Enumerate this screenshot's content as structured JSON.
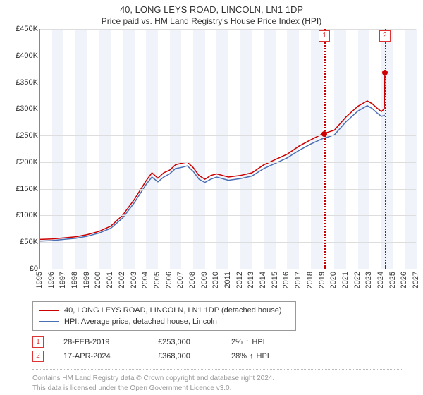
{
  "title": "40, LONG LEYS ROAD, LINCOLN, LN1 1DP",
  "subtitle": "Price paid vs. HM Land Registry's House Price Index (HPI)",
  "chart": {
    "type": "line",
    "background_color": "#ffffff",
    "grid_color": "#dddddd",
    "axis_color": "#888888",
    "band_color": "#f0f3f9",
    "ylim": [
      0,
      450000
    ],
    "ytick_step": 50000,
    "ytick_labels": [
      "£0",
      "£50K",
      "£100K",
      "£150K",
      "£200K",
      "£250K",
      "£300K",
      "£350K",
      "£400K",
      "£450K"
    ],
    "xlim": [
      1995,
      2027
    ],
    "xtick_step": 1,
    "xtick_labels": [
      "1995",
      "1996",
      "1997",
      "1998",
      "1999",
      "2000",
      "2001",
      "2002",
      "2003",
      "2004",
      "2005",
      "2006",
      "2007",
      "2008",
      "2009",
      "2010",
      "2011",
      "2012",
      "2013",
      "2014",
      "2015",
      "2016",
      "2017",
      "2018",
      "2019",
      "2020",
      "2021",
      "2022",
      "2023",
      "2024",
      "2025",
      "2026",
      "2027"
    ],
    "bands_years": [
      [
        1996,
        1997
      ],
      [
        1998,
        1999
      ],
      [
        2000,
        2001
      ],
      [
        2002,
        2003
      ],
      [
        2004,
        2005
      ],
      [
        2006,
        2007
      ],
      [
        2008,
        2009
      ],
      [
        2010,
        2011
      ],
      [
        2012,
        2013
      ],
      [
        2014,
        2015
      ],
      [
        2016,
        2017
      ],
      [
        2018,
        2019
      ],
      [
        2020,
        2021
      ],
      [
        2022,
        2023
      ],
      [
        2024,
        2025
      ],
      [
        2026,
        2027
      ]
    ],
    "series": [
      {
        "name": "property",
        "label": "40, LONG LEYS ROAD, LINCOLN, LN1 1DP (detached house)",
        "color": "#cc0000",
        "line_width": 1.5,
        "points": [
          [
            1995.0,
            55000
          ],
          [
            1996.0,
            56000
          ],
          [
            1997.0,
            58000
          ],
          [
            1998.0,
            60000
          ],
          [
            1999.0,
            64000
          ],
          [
            2000.0,
            70000
          ],
          [
            2001.0,
            80000
          ],
          [
            2002.0,
            100000
          ],
          [
            2003.0,
            130000
          ],
          [
            2004.0,
            165000
          ],
          [
            2004.5,
            180000
          ],
          [
            2005.0,
            170000
          ],
          [
            2005.5,
            180000
          ],
          [
            2006.0,
            185000
          ],
          [
            2006.5,
            195000
          ],
          [
            2007.0,
            198000
          ],
          [
            2007.5,
            200000
          ],
          [
            2008.0,
            190000
          ],
          [
            2008.5,
            175000
          ],
          [
            2009.0,
            168000
          ],
          [
            2009.5,
            175000
          ],
          [
            2010.0,
            178000
          ],
          [
            2011.0,
            172000
          ],
          [
            2012.0,
            175000
          ],
          [
            2013.0,
            180000
          ],
          [
            2014.0,
            195000
          ],
          [
            2015.0,
            205000
          ],
          [
            2016.0,
            215000
          ],
          [
            2017.0,
            230000
          ],
          [
            2018.0,
            242000
          ],
          [
            2019.0,
            253000
          ],
          [
            2020.0,
            260000
          ],
          [
            2021.0,
            285000
          ],
          [
            2022.0,
            305000
          ],
          [
            2022.8,
            315000
          ],
          [
            2023.2,
            310000
          ],
          [
            2023.6,
            302000
          ],
          [
            2024.0,
            295000
          ],
          [
            2024.25,
            300000
          ],
          [
            2024.3,
            368000
          ]
        ]
      },
      {
        "name": "hpi",
        "label": "HPI: Average price, detached house, Lincoln",
        "color": "#4a6fb5",
        "line_width": 1.5,
        "points": [
          [
            1995.0,
            52000
          ],
          [
            1996.0,
            53000
          ],
          [
            1997.0,
            55000
          ],
          [
            1998.0,
            57000
          ],
          [
            1999.0,
            61000
          ],
          [
            2000.0,
            67000
          ],
          [
            2001.0,
            76000
          ],
          [
            2002.0,
            95000
          ],
          [
            2003.0,
            124000
          ],
          [
            2004.0,
            158000
          ],
          [
            2004.5,
            172000
          ],
          [
            2005.0,
            163000
          ],
          [
            2005.5,
            172000
          ],
          [
            2006.0,
            178000
          ],
          [
            2006.5,
            188000
          ],
          [
            2007.0,
            190000
          ],
          [
            2007.5,
            193000
          ],
          [
            2008.0,
            183000
          ],
          [
            2008.5,
            168000
          ],
          [
            2009.0,
            162000
          ],
          [
            2009.5,
            168000
          ],
          [
            2010.0,
            172000
          ],
          [
            2011.0,
            166000
          ],
          [
            2012.0,
            169000
          ],
          [
            2013.0,
            174000
          ],
          [
            2014.0,
            188000
          ],
          [
            2015.0,
            198000
          ],
          [
            2016.0,
            208000
          ],
          [
            2017.0,
            222000
          ],
          [
            2018.0,
            234000
          ],
          [
            2019.0,
            244000
          ],
          [
            2020.0,
            251000
          ],
          [
            2021.0,
            276000
          ],
          [
            2022.0,
            296000
          ],
          [
            2022.8,
            306000
          ],
          [
            2023.2,
            301000
          ],
          [
            2023.6,
            293000
          ],
          [
            2024.0,
            286000
          ],
          [
            2024.3,
            288000
          ]
        ]
      }
    ],
    "markers": [
      {
        "year": 2019.16,
        "value": 253000,
        "label": "1",
        "color": "#cc0000"
      },
      {
        "year": 2024.29,
        "value": 368000,
        "label": "2",
        "color": "#cc0000"
      }
    ]
  },
  "legend": {
    "rows": [
      {
        "color": "#cc0000",
        "label": "40, LONG LEYS ROAD, LINCOLN, LN1 1DP (detached house)"
      },
      {
        "color": "#4a6fb5",
        "label": "HPI: Average price, detached house, Lincoln"
      }
    ]
  },
  "records": [
    {
      "num": "1",
      "date": "28-FEB-2019",
      "price": "£253,000",
      "pct": "2%",
      "arrow": "↑",
      "hpi": "HPI"
    },
    {
      "num": "2",
      "date": "17-APR-2024",
      "price": "£368,000",
      "pct": "28%",
      "arrow": "↑",
      "hpi": "HPI"
    }
  ],
  "footer": {
    "line1": "Contains HM Land Registry data © Crown copyright and database right 2024.",
    "line2": "This data is licensed under the Open Government Licence v3.0."
  }
}
